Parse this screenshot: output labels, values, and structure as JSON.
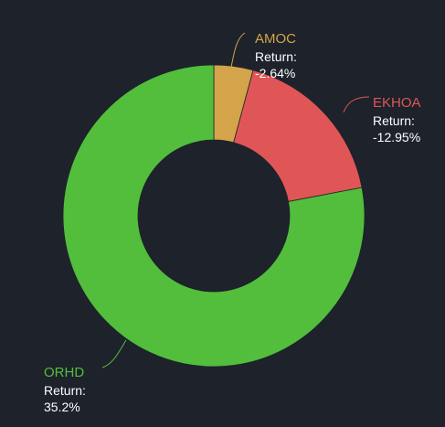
{
  "chart_data": {
    "type": "pie",
    "donut": true,
    "slices": [
      {
        "name": "AMOC",
        "label": "Return:",
        "value_text": "-2.64%",
        "share": 0.042,
        "color": "#d4a44a"
      },
      {
        "name": "EKHOA",
        "label": "Return:",
        "value_text": "-12.95%",
        "share": 0.178,
        "color": "#e05656"
      },
      {
        "name": "ORHD",
        "label": "Return:",
        "value_text": "35.2%",
        "share": 0.78,
        "color": "#52be3c"
      }
    ],
    "title": "",
    "legend": "none"
  }
}
